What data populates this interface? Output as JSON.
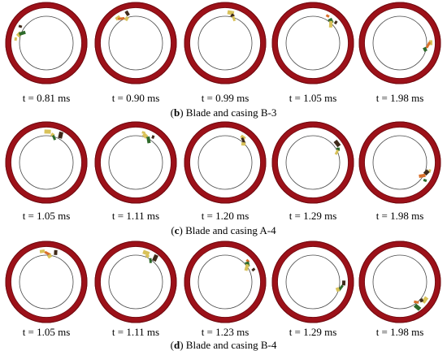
{
  "colors": {
    "casing": "#9c1119",
    "casing_dark": "#6e0a10",
    "inner_line": "#4a4a4a",
    "blade_yellow": "#d9c25a",
    "blade_orange": "#d9702a",
    "blade_green": "#2e6a2a",
    "blade_dark": "#3f2a1a"
  },
  "rows": [
    {
      "caption_letter": "b",
      "caption_text": "Blade and casing B-3",
      "frames": [
        {
          "label": "t = 0.81 ms",
          "fragments": [
            "yellow-green"
          ]
        },
        {
          "label": "t = 0.90 ms",
          "fragments": [
            "yellow-orange"
          ]
        },
        {
          "label": "t = 0.99 ms",
          "fragments": [
            "yellow-small"
          ]
        },
        {
          "label": "t = 1.05 ms",
          "fragments": [
            "mixed-small"
          ]
        },
        {
          "label": "t = 1.98 ms",
          "fragments": [
            "scattered"
          ]
        }
      ]
    },
    {
      "caption_letter": "c",
      "caption_text": "Blade and casing A-4",
      "frames": [
        {
          "label": "t = 1.05 ms",
          "fragments": [
            "yellow-green"
          ]
        },
        {
          "label": "t = 1.11 ms",
          "fragments": [
            "yellow-green"
          ]
        },
        {
          "label": "t = 1.20 ms",
          "fragments": [
            "yellow-small"
          ]
        },
        {
          "label": "t = 1.29 ms",
          "fragments": [
            "dark-small"
          ]
        },
        {
          "label": "t = 1.98 ms",
          "fragments": [
            "bottom-cluster"
          ]
        }
      ]
    },
    {
      "caption_letter": "d",
      "caption_text": "Blade and casing B-4",
      "frames": [
        {
          "label": "t = 1.05 ms",
          "fragments": [
            "yellow-orange"
          ]
        },
        {
          "label": "t = 1.11 ms",
          "fragments": [
            "yellow-green"
          ]
        },
        {
          "label": "t = 1.23 ms",
          "fragments": [
            "mixed-small"
          ]
        },
        {
          "label": "t = 1.29 ms",
          "fragments": [
            "dark-small"
          ]
        },
        {
          "label": "t = 1.98 ms",
          "fragments": [
            "bottom-cluster"
          ]
        }
      ]
    }
  ]
}
